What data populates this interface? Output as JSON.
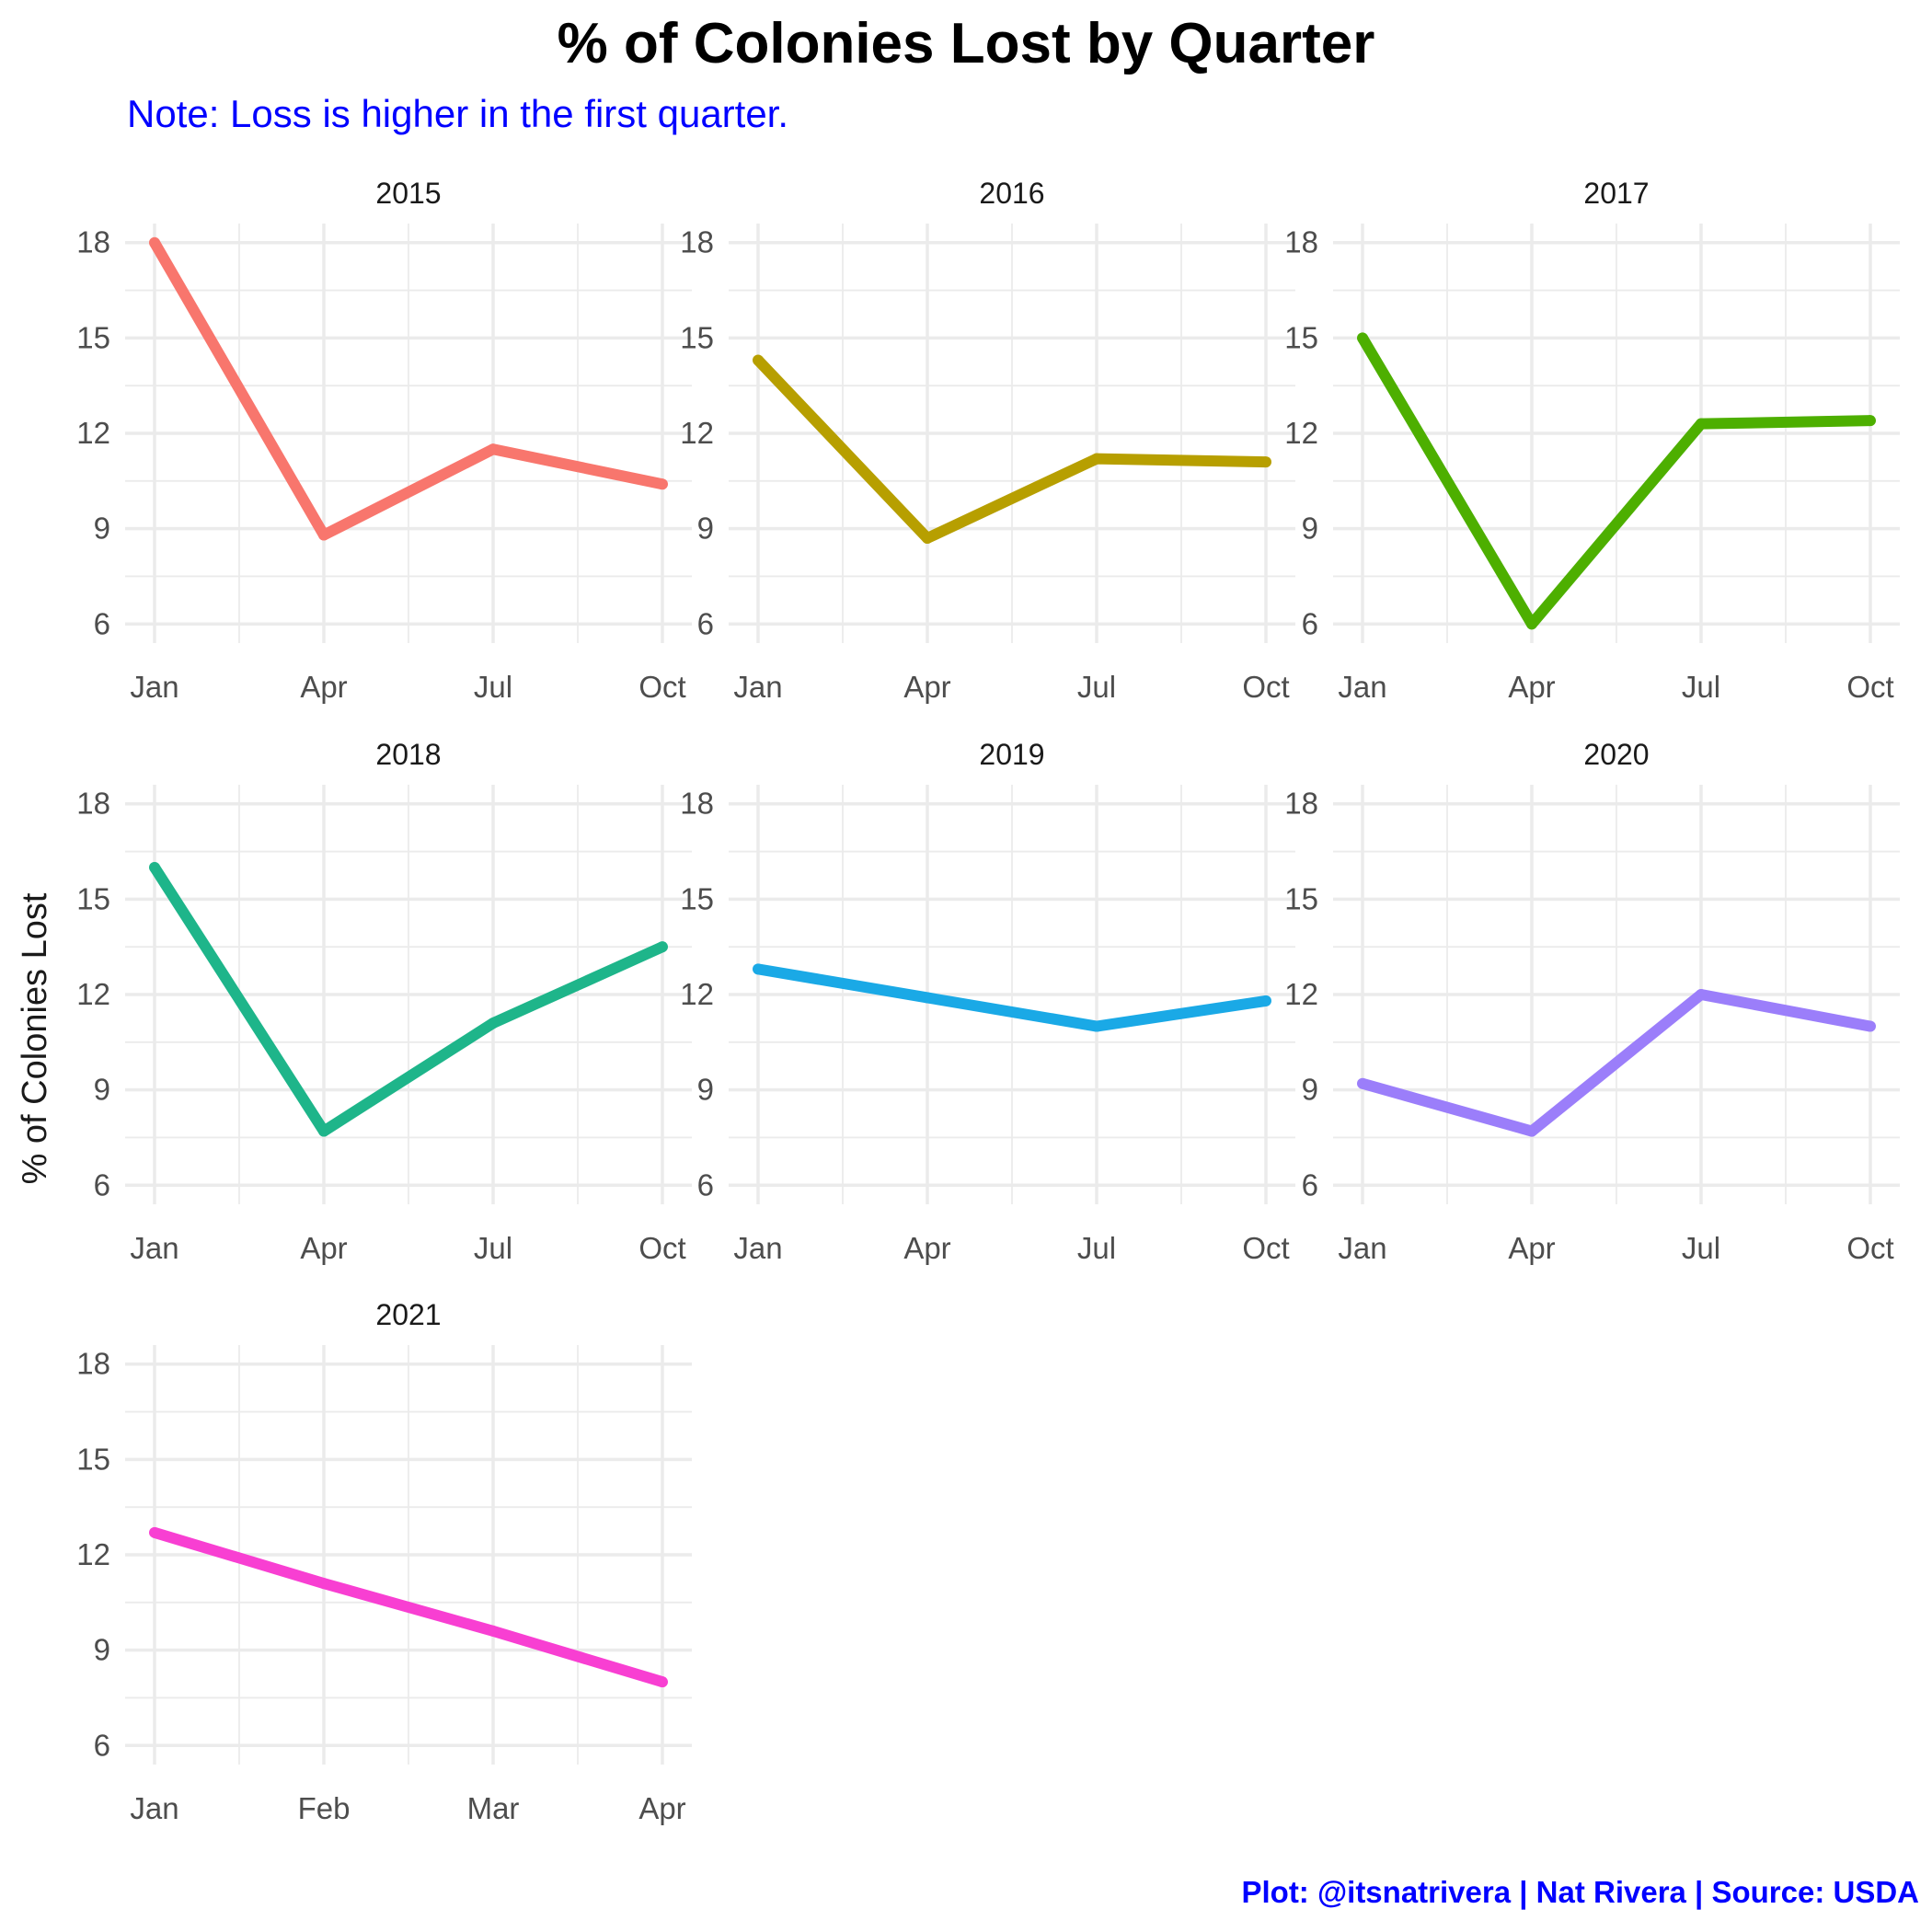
{
  "title": "% of Colonies Lost by Quarter",
  "subtitle": "Note: Loss is higher in the first quarter.",
  "caption": "Plot: @itsnatrivera | Nat Rivera | Source: USDA",
  "chart_data": {
    "type": "line",
    "ylabel": "% of Colonies Lost",
    "ylim": [
      5.4,
      18.6
    ],
    "yticks": [
      6,
      9,
      12,
      15,
      18
    ],
    "grid": true,
    "legend": "none",
    "panels": [
      {
        "title": "2015",
        "color": "#F8766D",
        "x": [
          "Jan",
          "Apr",
          "Jul",
          "Oct"
        ],
        "values": [
          18.0,
          8.8,
          11.5,
          10.4
        ]
      },
      {
        "title": "2016",
        "color": "#B79F00",
        "x": [
          "Jan",
          "Apr",
          "Jul",
          "Oct"
        ],
        "values": [
          14.3,
          8.7,
          11.2,
          11.1
        ]
      },
      {
        "title": "2017",
        "color": "#4DAF00",
        "x": [
          "Jan",
          "Apr",
          "Jul",
          "Oct"
        ],
        "values": [
          15.0,
          6.0,
          12.3,
          12.4
        ]
      },
      {
        "title": "2018",
        "color": "#1EB58A",
        "x": [
          "Jan",
          "Apr",
          "Jul",
          "Oct"
        ],
        "values": [
          16.0,
          7.7,
          11.1,
          13.5
        ]
      },
      {
        "title": "2019",
        "color": "#1AA9E6",
        "x": [
          "Jan",
          "Apr",
          "Jul",
          "Oct"
        ],
        "values": [
          12.8,
          11.9,
          11.0,
          11.8
        ]
      },
      {
        "title": "2020",
        "color": "#9B7EFA",
        "x": [
          "Jan",
          "Apr",
          "Jul",
          "Oct"
        ],
        "values": [
          9.2,
          7.7,
          12.0,
          11.0
        ]
      },
      {
        "title": "2021",
        "color": "#F83FD2",
        "x": [
          "Jan",
          "Feb",
          "Mar",
          "Apr"
        ],
        "values": [
          12.7,
          11.1,
          9.6,
          8.0
        ]
      }
    ]
  }
}
